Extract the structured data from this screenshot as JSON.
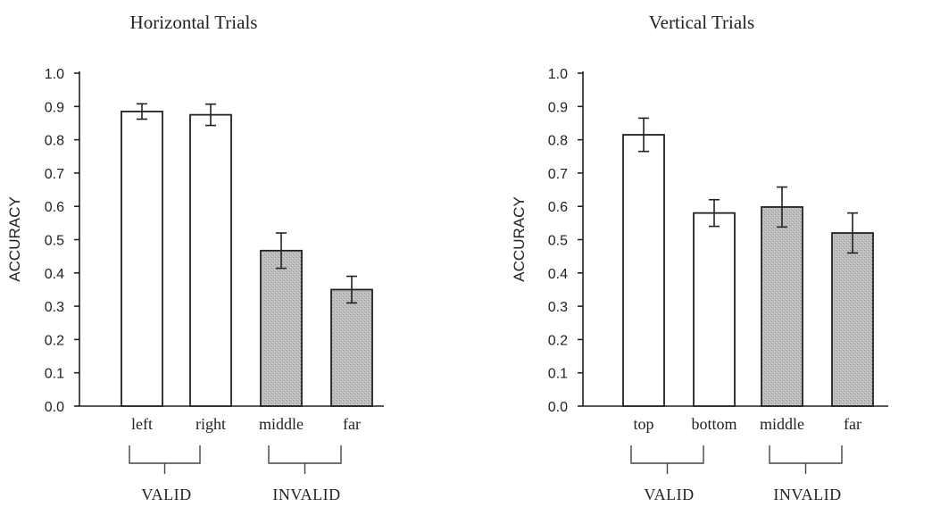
{
  "colors": {
    "valid_fill": "#ffffff",
    "invalid_fill": "#bdbdbd",
    "ink": "#222222"
  },
  "chart_data": [
    {
      "type": "bar",
      "title": "Horizontal Trials",
      "xlabel": "",
      "ylabel": "ACCURACY",
      "ylim": [
        0,
        1
      ],
      "yticks": [
        "0.0",
        "0.1",
        "0.2",
        "0.3",
        "0.4",
        "0.5",
        "0.6",
        "0.7",
        "0.8",
        "0.9",
        "1.0"
      ],
      "categories": [
        "left",
        "right",
        "middle",
        "far"
      ],
      "values": [
        0.885,
        0.875,
        0.467,
        0.35
      ],
      "error": [
        0.023,
        0.032,
        0.053,
        0.04
      ],
      "condition": [
        "valid",
        "valid",
        "invalid",
        "invalid"
      ],
      "groups": [
        {
          "label": "VALID",
          "categories": [
            "left",
            "right"
          ]
        },
        {
          "label": "INVALID",
          "categories": [
            "middle",
            "far"
          ]
        }
      ],
      "grid": false
    },
    {
      "type": "bar",
      "title": "Vertical Trials",
      "xlabel": "",
      "ylabel": "ACCURACY",
      "ylim": [
        0,
        1
      ],
      "yticks": [
        "0.0",
        "0.1",
        "0.2",
        "0.3",
        "0.4",
        "0.5",
        "0.6",
        "0.7",
        "0.8",
        "0.9",
        "1.0"
      ],
      "categories": [
        "top",
        "bottom",
        "middle",
        "far"
      ],
      "values": [
        0.815,
        0.58,
        0.598,
        0.52
      ],
      "error": [
        0.05,
        0.04,
        0.06,
        0.06
      ],
      "condition": [
        "valid",
        "valid",
        "invalid",
        "invalid"
      ],
      "groups": [
        {
          "label": "VALID",
          "categories": [
            "top",
            "bottom"
          ]
        },
        {
          "label": "INVALID",
          "categories": [
            "middle",
            "far"
          ]
        }
      ],
      "grid": false
    }
  ]
}
